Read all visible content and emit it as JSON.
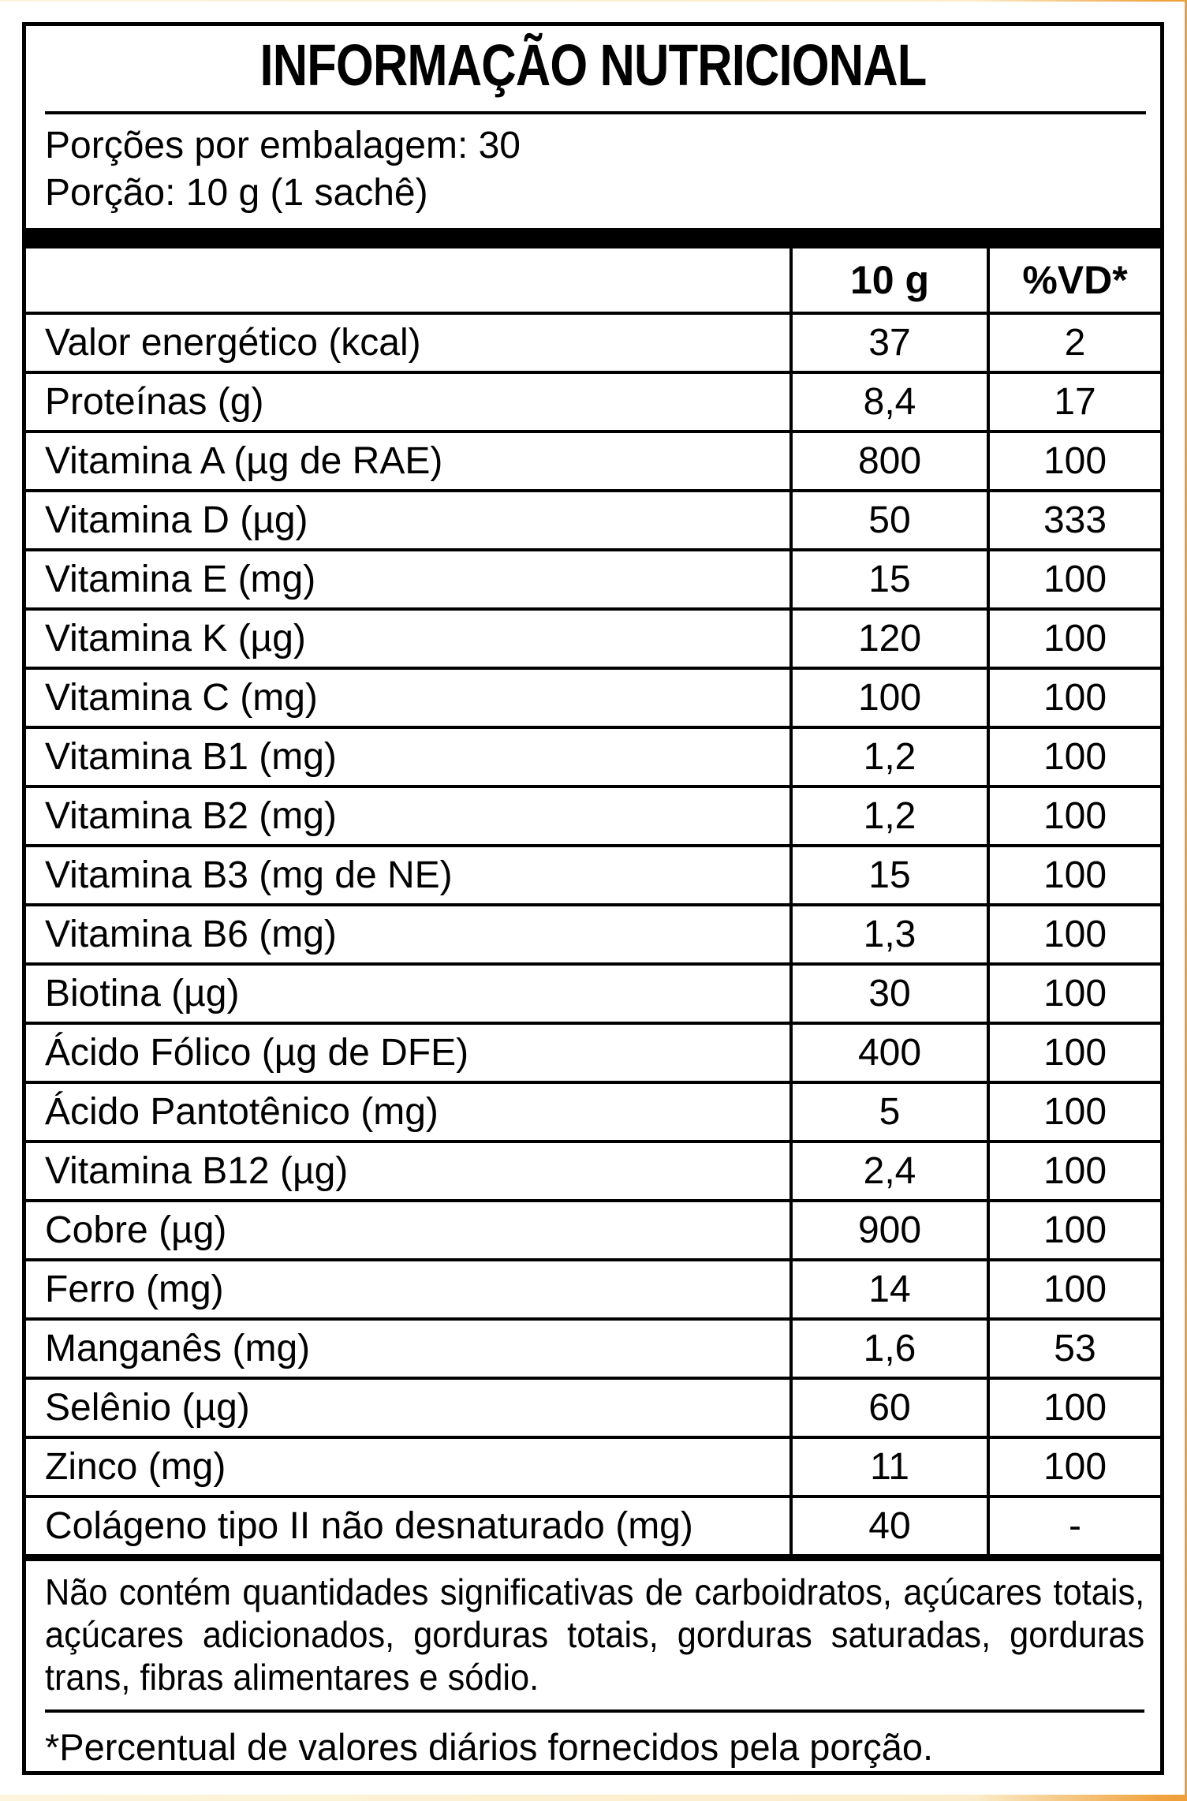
{
  "title": "INFORMAÇÃO NUTRICIONAL",
  "serving": {
    "servings_per_package": "Porções por embalagem: 30",
    "serving_size": "Porção: 10 g (1 sachê)"
  },
  "table": {
    "amount_header": "10 g",
    "dv_header": "%VD*",
    "rows": [
      {
        "name": "Valor energético (kcal)",
        "amount": "37",
        "dv": "2"
      },
      {
        "name": "Proteínas (g)",
        "amount": "8,4",
        "dv": "17"
      },
      {
        "name": "Vitamina A (µg de RAE)",
        "amount": "800",
        "dv": "100"
      },
      {
        "name": "Vitamina D (µg)",
        "amount": "50",
        "dv": "333"
      },
      {
        "name": "Vitamina E (mg)",
        "amount": "15",
        "dv": "100"
      },
      {
        "name": "Vitamina K (µg)",
        "amount": "120",
        "dv": "100"
      },
      {
        "name": "Vitamina C (mg)",
        "amount": "100",
        "dv": "100"
      },
      {
        "name": "Vitamina B1 (mg)",
        "amount": "1,2",
        "dv": "100"
      },
      {
        "name": "Vitamina B2 (mg)",
        "amount": "1,2",
        "dv": "100"
      },
      {
        "name": "Vitamina B3 (mg de NE)",
        "amount": "15",
        "dv": "100"
      },
      {
        "name": "Vitamina B6 (mg)",
        "amount": "1,3",
        "dv": "100"
      },
      {
        "name": "Biotina (µg)",
        "amount": "30",
        "dv": "100"
      },
      {
        "name": "Ácido Fólico (µg de DFE)",
        "amount": "400",
        "dv": "100"
      },
      {
        "name": "Ácido Pantotênico (mg)",
        "amount": "5",
        "dv": "100"
      },
      {
        "name": "Vitamina B12 (µg)",
        "amount": "2,4",
        "dv": "100"
      },
      {
        "name": "Cobre (µg)",
        "amount": "900",
        "dv": "100"
      },
      {
        "name": "Ferro (mg)",
        "amount": "14",
        "dv": "100"
      },
      {
        "name": "Manganês (mg)",
        "amount": "1,6",
        "dv": "53"
      },
      {
        "name": "Selênio (µg)",
        "amount": "60",
        "dv": "100"
      },
      {
        "name": "Zinco (mg)",
        "amount": "11",
        "dv": "100"
      },
      {
        "name": "Colágeno tipo II não desnaturado (mg)",
        "amount": "40",
        "dv": "-"
      }
    ]
  },
  "notes": {
    "no_significant_amounts": "Não contém quantidades significativas de carboidratos, açúcares totais, açúcares adicionados, gorduras totais, gorduras saturadas, gorduras trans, fibras alimentares e sódio.",
    "daily_value_footnote": "*Percentual de valores diários fornecidos pela porção."
  },
  "colors": {
    "text": "#000000",
    "border": "#000000",
    "label_background": "#ffffff",
    "package_cream": "#fdf4dc",
    "package_orange": "#f0a23c"
  }
}
